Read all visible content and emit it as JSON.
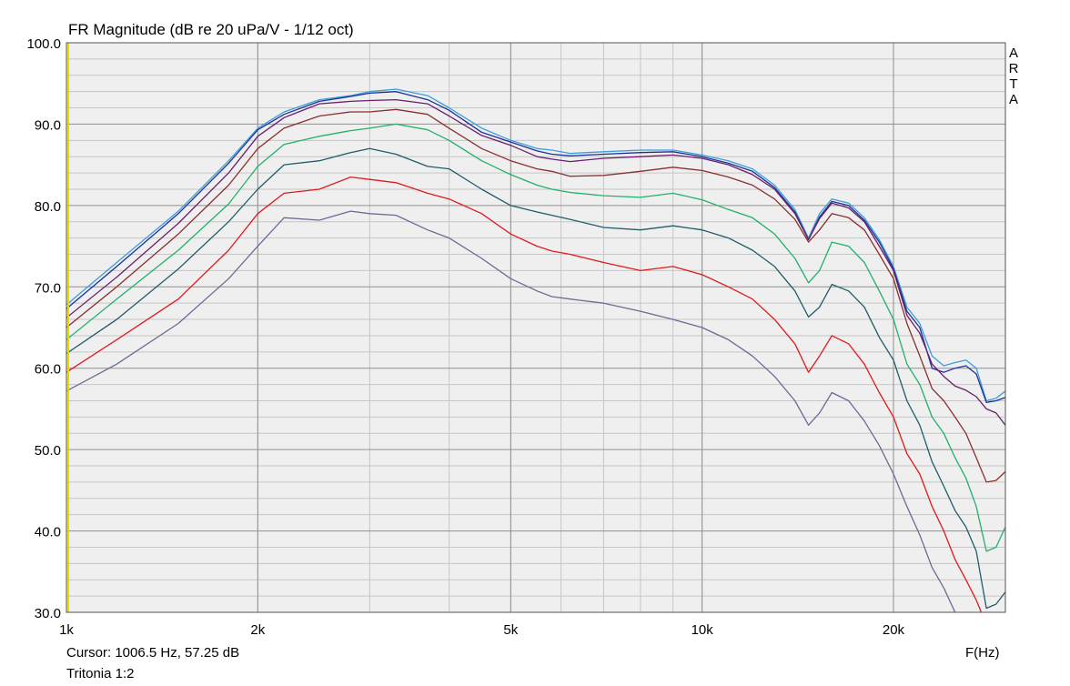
{
  "chart_data": {
    "type": "line",
    "title": "FR Magnitude (dB re 20 uPa/V - 1/12 oct)",
    "watermark": "ARTA",
    "xlabel": "F(Hz)",
    "ylabel": "",
    "x_scale": "log",
    "xlim": [
      1000,
      30000
    ],
    "ylim": [
      30,
      100
    ],
    "x_ticks": [
      {
        "value": 1000,
        "label": "1k"
      },
      {
        "value": 2000,
        "label": "2k"
      },
      {
        "value": 5000,
        "label": "5k"
      },
      {
        "value": 10000,
        "label": "10k"
      },
      {
        "value": 20000,
        "label": "20k"
      }
    ],
    "y_ticks": [
      {
        "value": 30,
        "label": "30.0"
      },
      {
        "value": 40,
        "label": "40.0"
      },
      {
        "value": 50,
        "label": "50.0"
      },
      {
        "value": 60,
        "label": "60.0"
      },
      {
        "value": 70,
        "label": "70.0"
      },
      {
        "value": 80,
        "label": "80.0"
      },
      {
        "value": 90,
        "label": "90.0"
      },
      {
        "value": 100,
        "label": "100.0"
      }
    ],
    "grid": true,
    "cursor_x": 1006.5,
    "x": [
      1000,
      1200,
      1500,
      1800,
      2000,
      2200,
      2500,
      2800,
      3000,
      3300,
      3700,
      4000,
      4500,
      5000,
      5500,
      5800,
      6200,
      7000,
      8000,
      9000,
      10000,
      11000,
      12000,
      13000,
      14000,
      14700,
      15300,
      16000,
      17000,
      18000,
      19000,
      20000,
      21000,
      22000,
      23000,
      24000,
      25000,
      26000,
      27000,
      28000,
      29000,
      30000
    ],
    "series": [
      {
        "color": "#3aa0d8",
        "values": [
          67.8,
          73.0,
          79.3,
          85.5,
          89.5,
          91.5,
          93.0,
          93.5,
          94.0,
          94.3,
          93.5,
          92.0,
          89.5,
          88.0,
          87.0,
          86.8,
          86.4,
          86.6,
          86.8,
          86.8,
          86.2,
          85.5,
          84.5,
          82.5,
          79.5,
          76.0,
          79.0,
          80.8,
          80.3,
          78.5,
          75.8,
          72.5,
          67.5,
          65.5,
          61.5,
          60.3,
          60.7,
          61.0,
          60.0,
          56.0,
          56.3,
          57.2
        ]
      },
      {
        "color": "#1f2f9c",
        "values": [
          67.3,
          72.5,
          79.0,
          85.2,
          89.3,
          91.2,
          92.8,
          93.4,
          93.8,
          94.0,
          93.0,
          91.7,
          89.0,
          87.8,
          86.7,
          86.3,
          86.1,
          86.3,
          86.5,
          86.6,
          86.0,
          85.2,
          84.2,
          82.2,
          79.2,
          75.8,
          78.6,
          80.5,
          80.0,
          78.2,
          75.5,
          72.2,
          67.0,
          65.0,
          60.0,
          59.5,
          60.0,
          60.3,
          59.3,
          55.8,
          56.0,
          56.4
        ]
      },
      {
        "color": "#6a1f6a",
        "values": [
          66.2,
          71.2,
          77.8,
          84.0,
          88.5,
          90.8,
          92.5,
          92.8,
          92.9,
          93.0,
          92.5,
          91.0,
          88.6,
          87.4,
          86.0,
          85.7,
          85.4,
          85.8,
          86.0,
          86.2,
          85.8,
          85.0,
          83.8,
          82.0,
          79.0,
          75.8,
          78.4,
          80.3,
          79.7,
          78.0,
          75.0,
          72.0,
          66.5,
          64.3,
          60.5,
          59.0,
          57.8,
          57.3,
          56.5,
          55.0,
          54.5,
          53.0
        ]
      },
      {
        "color": "#8b2f2f",
        "values": [
          65.0,
          70.0,
          76.5,
          82.5,
          87.0,
          89.5,
          91.0,
          91.5,
          91.5,
          91.8,
          91.2,
          89.5,
          87.0,
          85.5,
          84.5,
          84.2,
          83.6,
          83.7,
          84.2,
          84.7,
          84.3,
          83.5,
          82.5,
          80.8,
          78.3,
          75.5,
          77.0,
          79.0,
          78.5,
          77.0,
          74.0,
          71.0,
          65.5,
          61.5,
          57.5,
          56.0,
          54.0,
          52.0,
          49.0,
          46.0,
          46.2,
          47.3
        ]
      },
      {
        "color": "#22b06a",
        "values": [
          63.5,
          68.5,
          74.5,
          80.2,
          84.8,
          87.5,
          88.5,
          89.2,
          89.5,
          90.0,
          89.3,
          88.0,
          85.5,
          83.8,
          82.5,
          82.0,
          81.6,
          81.2,
          81.0,
          81.5,
          80.7,
          79.5,
          78.5,
          76.5,
          73.5,
          70.5,
          72.0,
          75.5,
          75.0,
          73.0,
          69.5,
          66.0,
          60.5,
          58.0,
          54.0,
          52.0,
          49.0,
          46.5,
          43.0,
          37.5,
          38.0,
          40.5
        ]
      },
      {
        "color": "#1f5d6b",
        "values": [
          61.8,
          66.0,
          72.2,
          78.0,
          82.0,
          85.0,
          85.5,
          86.5,
          87.0,
          86.3,
          84.8,
          84.5,
          82.0,
          80.0,
          79.2,
          78.8,
          78.3,
          77.3,
          77.0,
          77.5,
          77.0,
          76.0,
          74.5,
          72.5,
          69.5,
          66.3,
          67.5,
          70.3,
          69.5,
          67.5,
          63.8,
          61.0,
          56.0,
          53.0,
          48.5,
          45.5,
          42.5,
          40.5,
          37.5,
          30.5,
          31.0,
          32.5
        ]
      },
      {
        "color": "#e01a1a",
        "values": [
          59.5,
          63.5,
          68.5,
          74.5,
          79.0,
          81.5,
          82.0,
          83.5,
          83.2,
          82.8,
          81.5,
          80.8,
          79.0,
          76.5,
          75.0,
          74.4,
          74.0,
          73.0,
          72.0,
          72.5,
          71.5,
          70.0,
          68.5,
          66.0,
          63.0,
          59.5,
          61.5,
          64.0,
          63.0,
          60.5,
          57.0,
          54.0,
          49.5,
          47.0,
          43.0,
          40.0,
          36.5,
          34.0,
          31.5,
          28.5,
          27.5,
          27.0
        ]
      },
      {
        "color": "#6b6b95",
        "values": [
          57.2,
          60.5,
          65.5,
          71.0,
          75.0,
          78.5,
          78.2,
          79.3,
          79.0,
          78.8,
          77.0,
          76.0,
          73.5,
          71.0,
          69.5,
          68.8,
          68.5,
          68.0,
          67.0,
          66.0,
          65.0,
          63.5,
          61.5,
          59.0,
          56.0,
          53.0,
          54.5,
          57.0,
          56.0,
          53.5,
          50.5,
          47.0,
          43.0,
          39.5,
          35.5,
          33.0,
          30.0,
          28.0,
          27.0,
          26.0,
          25.0,
          24.0
        ]
      }
    ]
  },
  "footer": {
    "cursor_text": "Cursor: 1006.5 Hz, 57.25 dB",
    "name_text": "Tritonia 1:2",
    "xlabel": "F(Hz)"
  }
}
